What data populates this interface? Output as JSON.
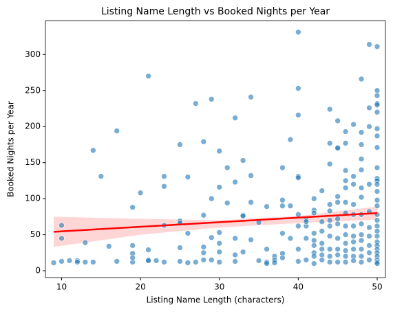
{
  "chart_data": {
    "type": "scatter",
    "title": "Listing Name Length vs Booked Nights per Year",
    "x_label": "Listing Name Length (characters)",
    "y_label": "Booked Nights per Year",
    "xlim": [
      7.95,
      51.05
    ],
    "ylim": [
      -9.5,
      347
    ],
    "xticks": [
      10,
      20,
      30,
      40,
      50
    ],
    "yticks": [
      0,
      50,
      100,
      150,
      200,
      250,
      300
    ],
    "grid": false,
    "series": [
      {
        "color": "#1f77b4",
        "x": [
          9,
          10,
          10,
          10,
          11,
          12,
          12,
          13,
          13,
          14,
          14,
          15,
          16,
          17,
          17,
          19,
          19,
          19,
          19,
          19,
          20,
          21,
          21,
          21,
          21,
          22,
          23,
          23,
          23,
          23,
          25,
          25,
          25,
          25,
          25,
          26,
          26,
          26,
          27,
          27,
          28,
          28,
          28,
          28,
          28,
          29,
          29,
          29,
          29,
          30,
          30,
          30,
          30,
          30,
          30,
          31,
          31,
          32,
          32,
          32,
          32,
          32,
          33,
          33,
          33,
          33,
          34,
          34,
          34,
          34,
          35,
          35,
          36,
          36,
          36,
          36,
          37,
          37,
          37,
          38,
          38,
          38,
          38,
          38,
          38,
          39,
          39,
          39,
          40,
          40,
          40,
          40,
          40,
          40,
          40,
          40,
          40,
          41,
          41,
          41,
          41,
          41,
          42,
          42,
          42,
          42,
          42,
          42,
          42,
          42,
          42,
          43,
          43,
          43,
          43,
          43,
          43,
          43,
          44,
          44,
          44,
          44,
          44,
          44,
          44,
          44,
          44,
          44,
          44,
          45,
          45,
          45,
          45,
          45,
          45,
          45,
          45,
          45,
          45,
          45,
          46,
          46,
          46,
          46,
          46,
          46,
          46,
          46,
          46,
          46,
          46,
          46,
          46,
          47,
          47,
          47,
          47,
          47,
          47,
          47,
          47,
          47,
          47,
          47,
          48,
          48,
          48,
          48,
          48,
          48,
          48,
          48,
          48,
          48,
          48,
          48,
          48,
          48,
          49,
          49,
          49,
          49,
          49,
          49,
          49,
          49,
          49,
          49,
          50,
          50,
          50,
          50,
          50,
          50,
          50,
          50,
          50,
          50,
          50,
          50,
          50,
          50,
          50,
          50,
          50,
          50,
          50,
          50,
          50,
          50,
          50,
          50,
          50,
          50,
          50,
          50,
          50
        ],
        "values": [
          11,
          63,
          45,
          13,
          14,
          14,
          12,
          39,
          12,
          167,
          12,
          131,
          34,
          194,
          13,
          88,
          35,
          24,
          12,
          18,
          108,
          270,
          29,
          15,
          14,
          14,
          131,
          117,
          63,
          12,
          175,
          69,
          66,
          32,
          13,
          130,
          52,
          11,
          232,
          12,
          179,
          77,
          33,
          25,
          15,
          238,
          100,
          46,
          15,
          166,
          116,
          53,
          38,
          26,
          12,
          143,
          94,
          212,
          123,
          45,
          22,
          13,
          153,
          77,
          76,
          26,
          241,
          132,
          95,
          43,
          67,
          14,
          89,
          30,
          12,
          10,
          20,
          15,
          11,
          143,
          98,
          90,
          52,
          24,
          18,
          182,
          90,
          45,
          331,
          253,
          216,
          131,
          129,
          78,
          62,
          30,
          13,
          62,
          45,
          15,
          71,
          68,
          100,
          84,
          80,
          52,
          42,
          35,
          25,
          20,
          10,
          111,
          68,
          55,
          38,
          30,
          22,
          15,
          224,
          177,
          148,
          92,
          83,
          70,
          62,
          48,
          30,
          20,
          12,
          208,
          171,
          170,
          103,
          95,
          72,
          65,
          45,
          30,
          22,
          12,
          193,
          177,
          139,
          125,
          115,
          95,
          80,
          62,
          50,
          38,
          28,
          20,
          12,
          203,
          131,
          120,
          92,
          78,
          62,
          48,
          40,
          30,
          20,
          14,
          266,
          192,
          175,
          155,
          140,
          115,
          102,
          78,
          65,
          50,
          42,
          30,
          20,
          12,
          314,
          226,
          200,
          120,
          82,
          60,
          48,
          35,
          25,
          15,
          311,
          250,
          243,
          232,
          230,
          220,
          197,
          187,
          171,
          143,
          128,
          125,
          120,
          110,
          98,
          90,
          78,
          70,
          62,
          55,
          48,
          40,
          35,
          30,
          25,
          20,
          15,
          12,
          10
        ]
      }
    ],
    "regression": {
      "color": "#ff0000",
      "x": [
        9,
        50
      ],
      "values": [
        54,
        80
      ]
    },
    "band": {
      "color": "#ffcccc",
      "x": [
        9,
        20,
        30,
        40,
        50
      ],
      "lower": [
        33,
        50,
        60,
        66,
        71
      ],
      "upper": [
        75,
        72,
        70,
        76,
        89
      ]
    }
  }
}
